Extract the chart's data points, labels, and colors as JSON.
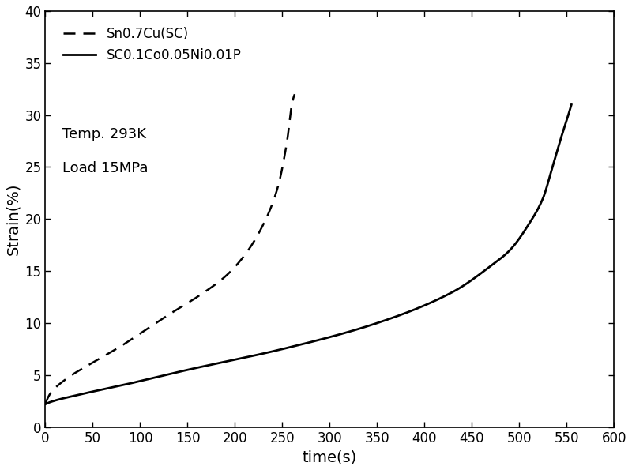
{
  "title": "",
  "xlabel": "time(s)",
  "ylabel": "Strain(%)",
  "xlim": [
    0,
    600
  ],
  "ylim": [
    0,
    40
  ],
  "xticks": [
    0,
    50,
    100,
    150,
    200,
    250,
    300,
    350,
    400,
    450,
    500,
    550,
    600
  ],
  "yticks": [
    0,
    5,
    10,
    15,
    20,
    25,
    30,
    35,
    40
  ],
  "legend1_label": "Sn0.7Cu(SC)",
  "legend2_label": "SC0.1Co0.05Ni0.01P",
  "annotation_line1": "Temp. 293K",
  "annotation_line2": "Load 15MPa",
  "background_color": "#ffffff",
  "line_color": "#000000",
  "fontsize_labels": 14,
  "fontsize_ticks": 12,
  "fontsize_legend": 12,
  "fontsize_annotation": 13,
  "curve1_knots_t": [
    0,
    5,
    20,
    50,
    80,
    100,
    130,
    160,
    190,
    210,
    230,
    245,
    255,
    260,
    263
  ],
  "curve1_knots_s": [
    2.3,
    3.2,
    4.5,
    6.2,
    7.8,
    9.0,
    10.8,
    12.5,
    14.5,
    16.5,
    19.5,
    23.0,
    27.5,
    31.0,
    32.0
  ],
  "curve2_knots_t": [
    0,
    5,
    30,
    80,
    150,
    250,
    350,
    430,
    470,
    490,
    510,
    525,
    535,
    543,
    550,
    555
  ],
  "curve2_knots_s": [
    2.2,
    2.4,
    3.0,
    4.0,
    5.5,
    7.5,
    10.0,
    13.0,
    15.5,
    17.0,
    19.5,
    22.0,
    25.0,
    27.5,
    29.5,
    31.0
  ]
}
